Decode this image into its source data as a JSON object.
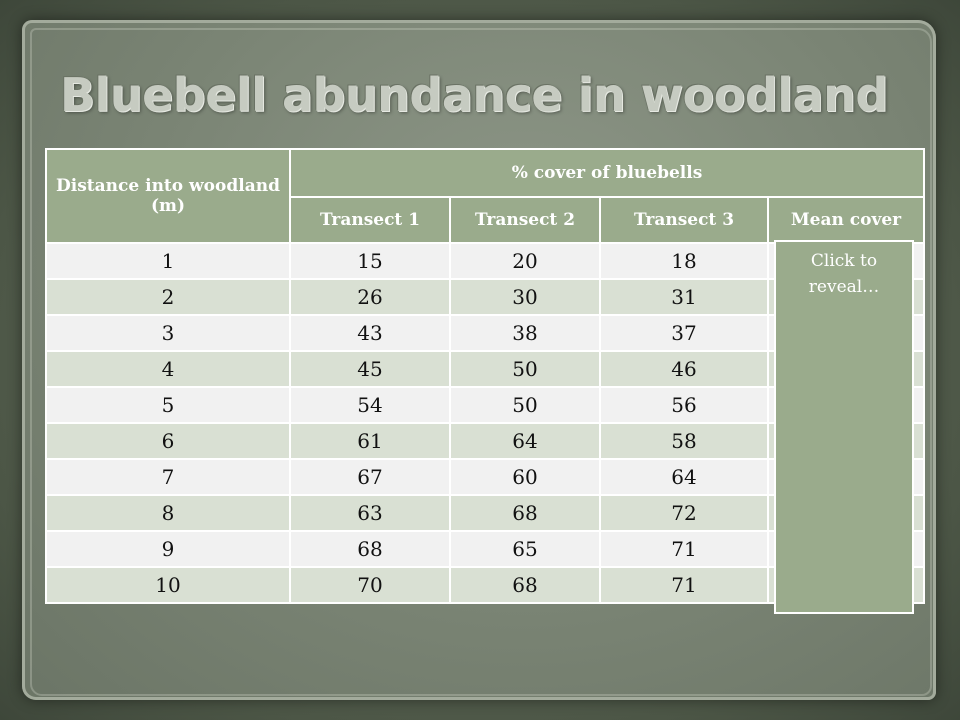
{
  "slide": {
    "title": "Bluebell abundance in woodland"
  },
  "table": {
    "header": {
      "distance_label": "Distance into woodland (m)",
      "group_label": "% cover of bluebells",
      "columns": [
        "Transect 1",
        "Transect 2",
        "Transect 3",
        "Mean cover"
      ]
    },
    "rows": [
      {
        "distance": "1",
        "t1": "15",
        "t2": "20",
        "t3": "18"
      },
      {
        "distance": "2",
        "t1": "26",
        "t2": "30",
        "t3": "31"
      },
      {
        "distance": "3",
        "t1": "43",
        "t2": "38",
        "t3": "37"
      },
      {
        "distance": "4",
        "t1": "45",
        "t2": "50",
        "t3": "46"
      },
      {
        "distance": "5",
        "t1": "54",
        "t2": "50",
        "t3": "56"
      },
      {
        "distance": "6",
        "t1": "61",
        "t2": "64",
        "t3": "58"
      },
      {
        "distance": "7",
        "t1": "67",
        "t2": "60",
        "t3": "64"
      },
      {
        "distance": "8",
        "t1": "63",
        "t2": "68",
        "t3": "72"
      },
      {
        "distance": "9",
        "t1": "68",
        "t2": "65",
        "t3": "71"
      },
      {
        "distance": "10",
        "t1": "70",
        "t2": "68",
        "t3": "71"
      }
    ]
  },
  "reveal": {
    "label": "Click to reveal…"
  }
}
